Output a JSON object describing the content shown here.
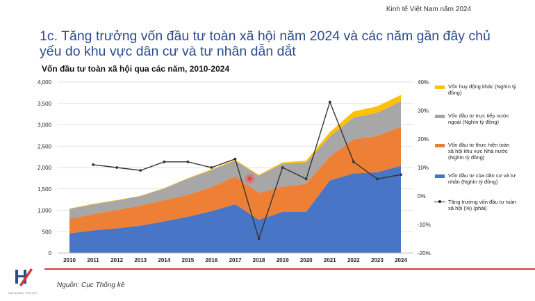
{
  "header": {
    "top_label": "Kinh tế Việt Nam năm 2024"
  },
  "slide": {
    "title": "1c. Tăng trưởng vốn đầu tư toàn xã hội năm 2024 và các năm gần đây chủ yếu do khu vực dân cư và tư nhân dẫn dắt"
  },
  "footer": {
    "source": "Nguồn: Cục Thống kê",
    "logo_text": "HATHAWAY POLICY"
  },
  "colors": {
    "private": "#4472c4",
    "state": "#ed7d31",
    "fdi": "#a5a5a5",
    "other": "#ffc000",
    "growth": "#333333",
    "highlight": "#ff3b3b",
    "brand": "#d23a3a"
  },
  "chart_data": {
    "type": "area",
    "title": "Vốn đầu tư toàn xã hội qua các năm, 2010-2024",
    "x": [
      "2010",
      "2011",
      "2012",
      "2013",
      "2014",
      "2015",
      "2016",
      "2017",
      "2018",
      "2019",
      "2020",
      "2021",
      "2022",
      "2023",
      "2024"
    ],
    "series": [
      {
        "name": "Vốn đầu tư của dân cư và tư nhân (Nghìn tỷ đồng)",
        "axis": "left",
        "color": "#4472c4",
        "values": [
          460,
          530,
          580,
          640,
          740,
          850,
          980,
          1140,
          780,
          960,
          960,
          1700,
          1860,
          1890,
          2040
        ]
      },
      {
        "name": "Vốn đầu tư thực hiện toàn xã hội khu vực Nhà nước (Nghìn tỷ đồng)",
        "axis": "left",
        "color": "#ed7d31",
        "values": [
          340,
          380,
          430,
          470,
          500,
          510,
          560,
          650,
          630,
          590,
          660,
          560,
          800,
          850,
          910
        ]
      },
      {
        "name": "Vốn đầu tư trực tiếp nước ngoài (Nghìn tỷ đồng)",
        "axis": "left",
        "color": "#a5a5a5",
        "values": [
          230,
          230,
          220,
          220,
          270,
          380,
          400,
          370,
          400,
          540,
          500,
          470,
          510,
          540,
          600
        ]
      },
      {
        "name": "Vốn huy động khác (Nghìn tỷ đồng)",
        "axis": "left",
        "color": "#ffc000",
        "values": [
          10,
          10,
          10,
          10,
          10,
          10,
          20,
          20,
          20,
          30,
          40,
          100,
          140,
          150,
          150
        ]
      },
      {
        "name": "Tăng trưởng vốn đầu tư toàn xã hội (%) (phải)",
        "axis": "right",
        "type": "line",
        "color": "#333333",
        "values": [
          11,
          10,
          9,
          12,
          12,
          10,
          13,
          -15,
          10,
          6,
          33,
          12,
          6,
          7.5
        ],
        "x": [
          "2011",
          "2012",
          "2013",
          "2014",
          "2015",
          "2016",
          "2017",
          "2018",
          "2019",
          "2020",
          "2021",
          "2022",
          "2023",
          "2024"
        ]
      }
    ],
    "y_left": {
      "min": 0,
      "max": 4000,
      "ticks": [
        "0",
        "500",
        "1,000",
        "1,500",
        "2,000",
        "2,500",
        "3,000",
        "3,500",
        "4,000"
      ]
    },
    "y_right": {
      "min": -20,
      "max": 40,
      "ticks": [
        "-20%",
        "-10%",
        "0%",
        "10%",
        "20%",
        "30%",
        "40%"
      ]
    },
    "stacked": true,
    "legend_position": "right",
    "annotation": {
      "type": "red-dot-marker",
      "x": "2017",
      "y_value": 1580
    }
  }
}
